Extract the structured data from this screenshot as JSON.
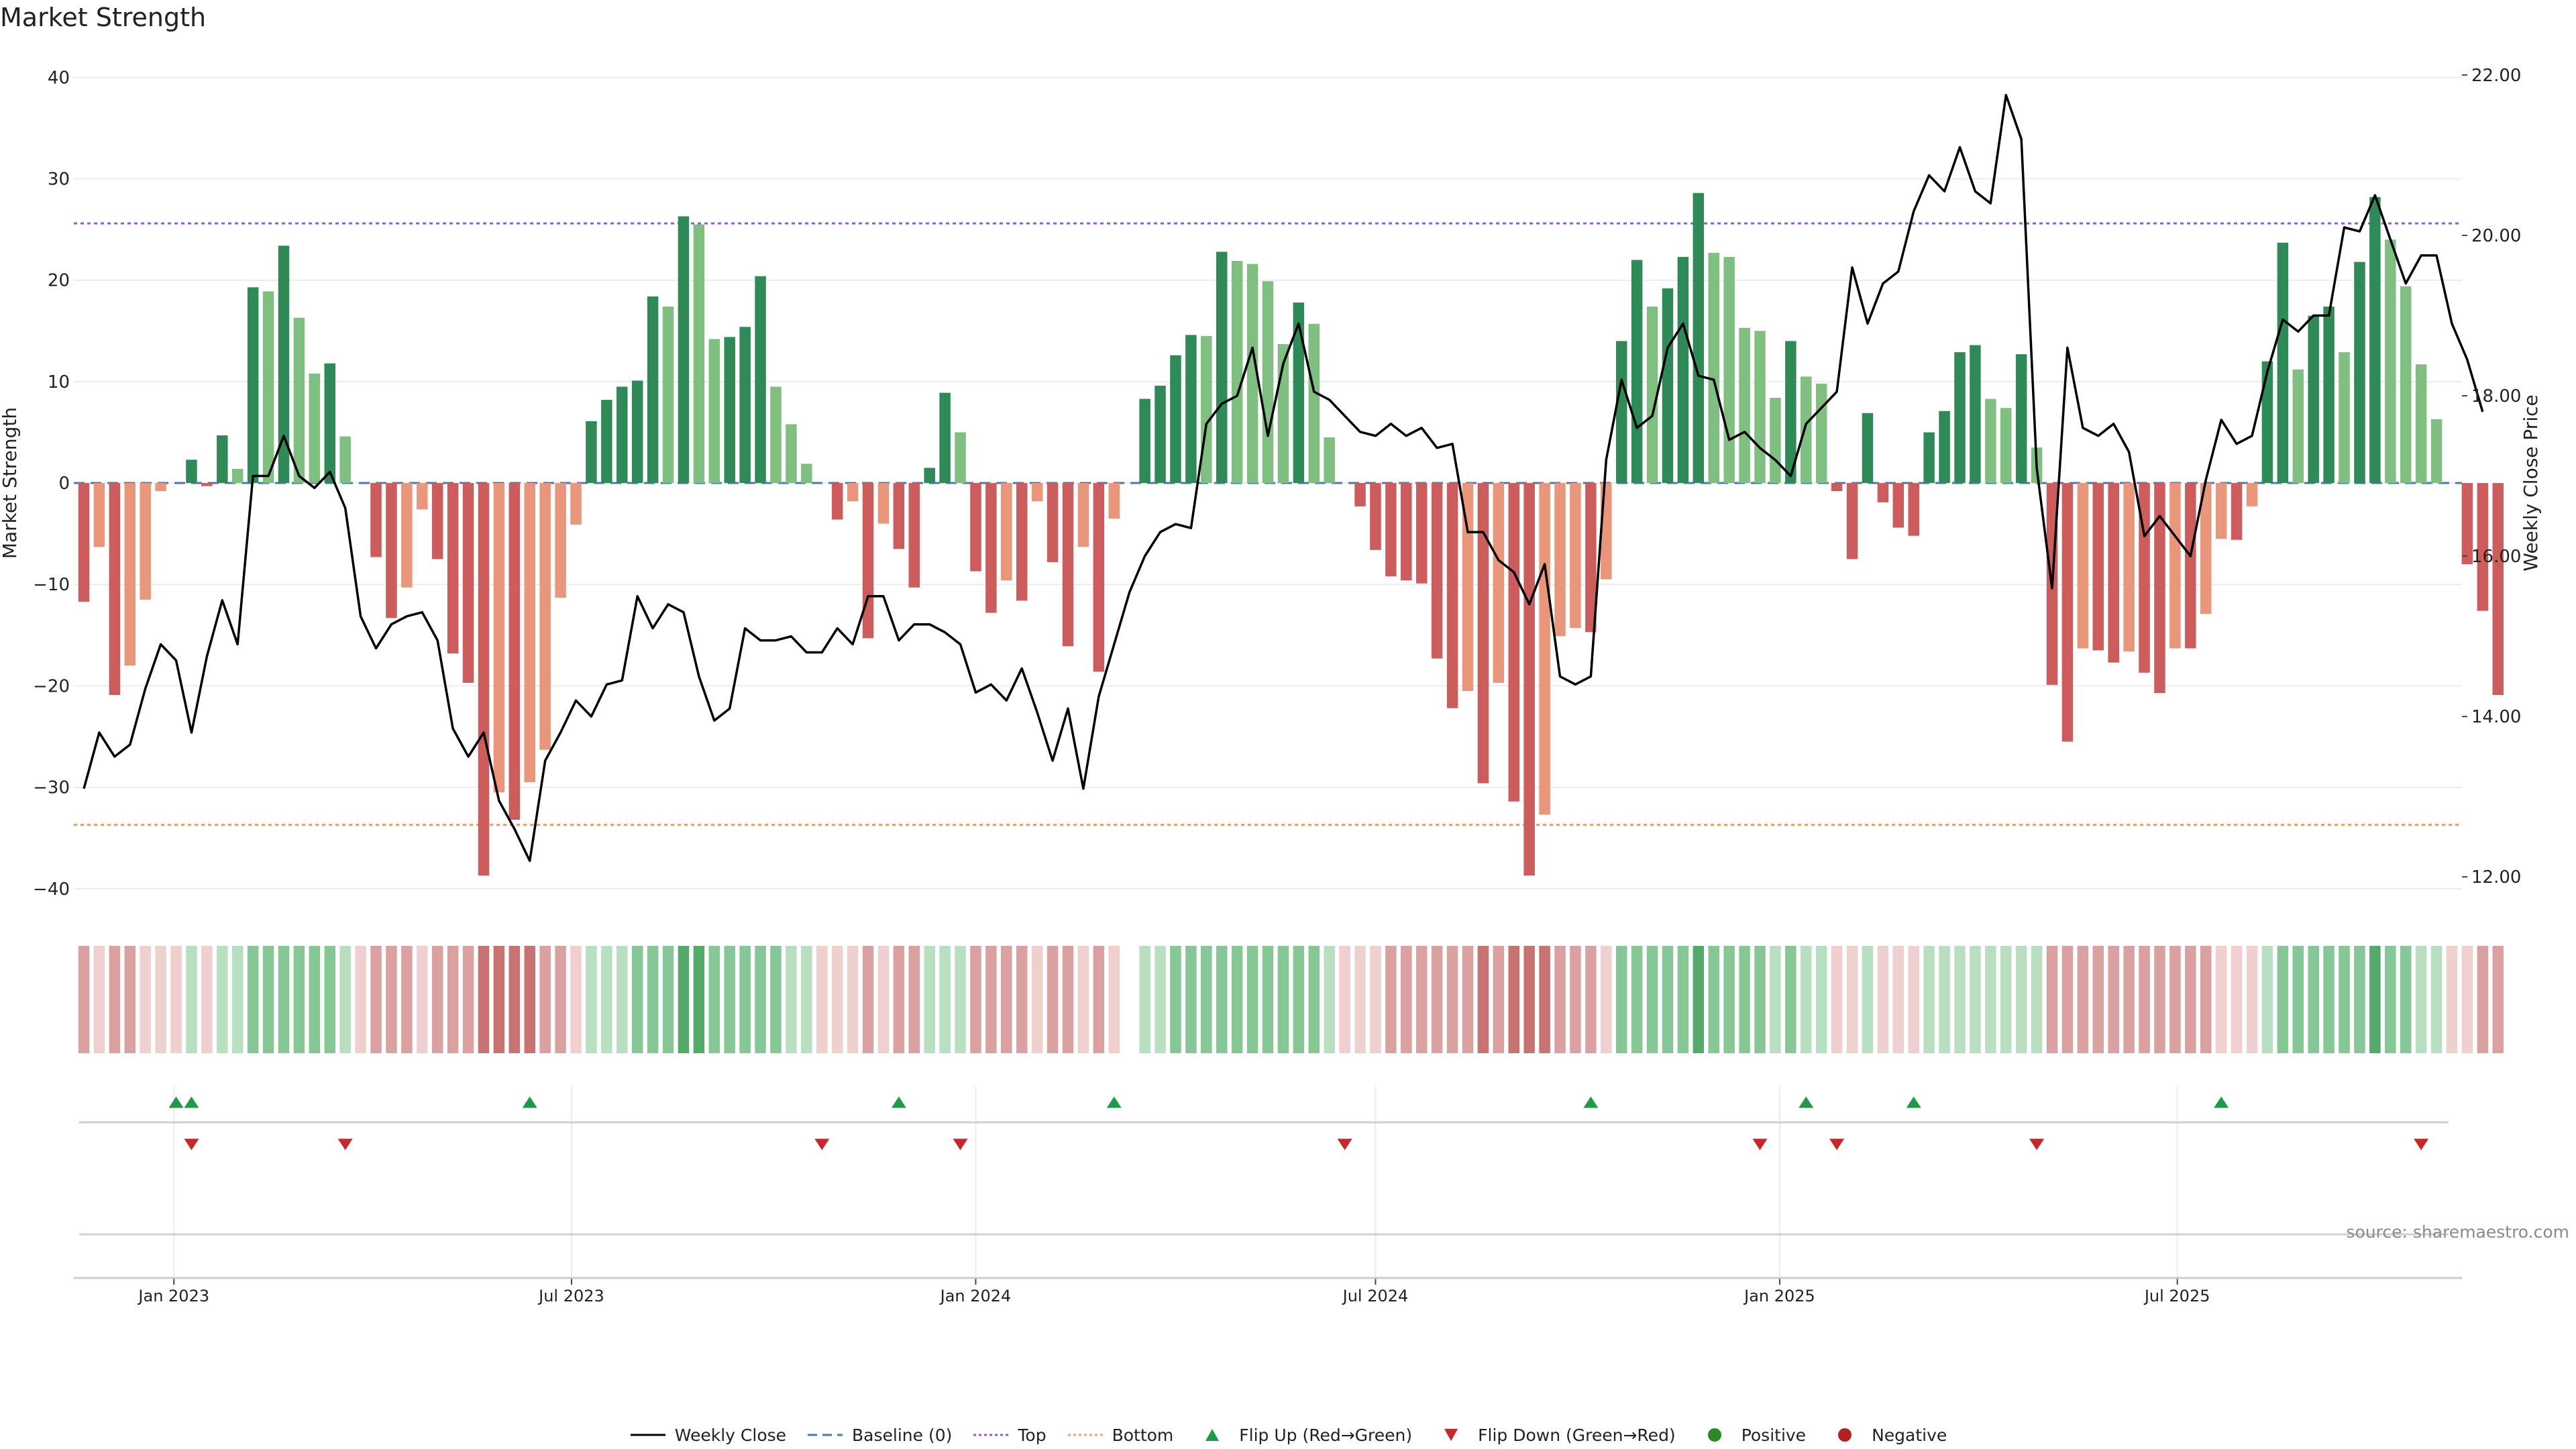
{
  "title": "Market Strength",
  "source": "source: sharemaestro.com",
  "colors": {
    "strong_green": "#2e8b57",
    "light_green": "#7fbf7f",
    "strong_red": "#cd5c5c",
    "light_red": "#e9967a",
    "flip_up": "#1f9a4a",
    "flip_down": "#c62828",
    "positive": "#2a8a2a",
    "negative": "#b22222",
    "baseline": "#4a78b5",
    "top": "#9b59d6",
    "bottom": "#f0a070",
    "price": "#000000"
  },
  "chart_data": {
    "type": "bar",
    "title": "Market Strength",
    "ylabel": "Market Strength",
    "y2label": "Weekly Close Price",
    "ylim": [
      -42,
      43
    ],
    "y2lim": [
      11.6,
      22.35
    ],
    "yticks": [
      40,
      30,
      20,
      10,
      0,
      -10,
      -20,
      -30,
      -40
    ],
    "y2ticks": [
      "22.00",
      "20.00",
      "18.00",
      "16.00",
      "14.00",
      "12.00"
    ],
    "y2tick_values": [
      22,
      20,
      18,
      16,
      14,
      12
    ],
    "x_start": "2022-11-21",
    "x_end": "2025-11-03",
    "x_interval_days": 7,
    "xticks": [
      {
        "label": "Jan 2023",
        "date": "2023-01-01"
      },
      {
        "label": "Jul 2023",
        "date": "2023-07-01"
      },
      {
        "label": "Jan 2024",
        "date": "2024-01-01"
      },
      {
        "label": "Jul 2024",
        "date": "2024-07-01"
      },
      {
        "label": "Jan 2025",
        "date": "2025-01-01"
      },
      {
        "label": "Jul 2025",
        "date": "2025-07-01"
      }
    ],
    "top": 25.6,
    "bottom": -33.7,
    "baseline": 0,
    "strength": [
      -11.7,
      -6.3,
      -20.9,
      -18,
      -11.5,
      -0.8,
      0,
      2.3,
      -0.3,
      4.7,
      1.4,
      19.3,
      18.9,
      23.4,
      16.3,
      10.8,
      11.8,
      4.6,
      0,
      -7.3,
      -13.3,
      -10.3,
      -2.6,
      -7.5,
      -16.8,
      -19.7,
      -38.7,
      -30.5,
      -33.2,
      -29.5,
      -26.3,
      -11.3,
      -4.1,
      6.1,
      8.2,
      9.5,
      10.1,
      18.4,
      17.4,
      26.3,
      25.5,
      14.2,
      14.4,
      15.4,
      20.4,
      9.5,
      5.8,
      1.9,
      0,
      -3.6,
      -1.8,
      -15.3,
      -4,
      -6.5,
      -10.3,
      1.5,
      8.9,
      5,
      -8.7,
      -12.8,
      -9.6,
      -11.6,
      -1.8,
      -7.8,
      -16.1,
      -6.3,
      -18.6,
      -3.5,
      0,
      8.3,
      9.6,
      12.6,
      14.6,
      14.5,
      22.8,
      21.9,
      21.6,
      19.9,
      13.7,
      17.8,
      15.7,
      4.5,
      0,
      -2.3,
      -6.6,
      -9.2,
      -9.6,
      -9.9,
      -17.3,
      -22.2,
      -20.5,
      -29.6,
      -19.7,
      -31.4,
      -38.7,
      -32.7,
      -15.1,
      -14.3,
      -14.7,
      -9.5,
      14,
      22,
      17.4,
      19.2,
      22.3,
      28.6,
      22.7,
      22.3,
      15.3,
      15,
      8.4,
      14,
      10.5,
      9.8,
      -0.8,
      -7.5,
      6.9,
      -1.9,
      -4.4,
      -5.2,
      5,
      7.1,
      12.9,
      13.6,
      8.3,
      7.4,
      12.7,
      3.5,
      -19.9,
      -25.5,
      -16.3,
      -16.5,
      -17.7,
      -16.6,
      -18.7,
      -20.7,
      -16.3,
      -16.3,
      -12.9,
      -5.5,
      -5.6,
      -2.3,
      12,
      23.7,
      11.2,
      16.5,
      17.4,
      12.9,
      21.8,
      28.2,
      24,
      19.4,
      11.7,
      6.3,
      0,
      -8,
      -12.6,
      -20.9
    ],
    "price": [
      13.1,
      13.8,
      13.5,
      13.65,
      14.35,
      14.9,
      14.7,
      13.8,
      14.75,
      15.45,
      14.9,
      17,
      17,
      17.5,
      17,
      16.85,
      17.05,
      16.6,
      15.25,
      14.85,
      15.15,
      15.25,
      15.3,
      14.95,
      13.85,
      13.5,
      13.8,
      12.95,
      12.6,
      12.2,
      13.45,
      13.8,
      14.2,
      14,
      14.4,
      14.45,
      15.5,
      15.1,
      15.4,
      15.3,
      14.5,
      13.95,
      14.1,
      15.1,
      14.95,
      14.95,
      15,
      14.8,
      14.8,
      15.1,
      14.9,
      15.5,
      15.5,
      14.95,
      15.15,
      15.15,
      15.05,
      14.9,
      14.3,
      14.4,
      14.2,
      14.6,
      14.05,
      13.45,
      14.1,
      13.1,
      14.25,
      14.9,
      15.55,
      16,
      16.3,
      16.4,
      16.35,
      17.65,
      17.9,
      18,
      18.6,
      17.5,
      18.4,
      18.9,
      18.05,
      17.95,
      17.75,
      17.55,
      17.5,
      17.65,
      17.5,
      17.6,
      17.35,
      17.4,
      16.3,
      16.3,
      15.95,
      15.8,
      15.4,
      15.9,
      14.5,
      14.4,
      14.5,
      17.2,
      18.2,
      17.6,
      17.75,
      18.6,
      18.9,
      18.25,
      18.2,
      17.45,
      17.55,
      17.35,
      17.2,
      17,
      17.65,
      17.85,
      18.05,
      19.6,
      18.9,
      19.4,
      19.55,
      20.3,
      20.75,
      20.55,
      21.1,
      20.55,
      20.4,
      21.75,
      21.2,
      17.1,
      15.6,
      18.6,
      17.6,
      17.5,
      17.65,
      17.3,
      16.25,
      16.5,
      16.25,
      16,
      16.95,
      17.7,
      17.4,
      17.5,
      18.3,
      18.95,
      18.8,
      19,
      19,
      20.1,
      20.05,
      20.5,
      19.95,
      19.4,
      19.75,
      19.75,
      18.9,
      18.45,
      17.8
    ],
    "band_levels": [
      -2,
      -1,
      -2,
      -2,
      -1,
      -1,
      -1,
      1,
      -1,
      1,
      1,
      2,
      2,
      2,
      2,
      2,
      2,
      1,
      -1,
      -2,
      -2,
      -2,
      -1,
      -2,
      -2,
      -2,
      -3,
      -3,
      -3,
      -3,
      -2,
      -2,
      -1,
      1,
      1,
      1,
      2,
      2,
      2,
      3,
      3,
      2,
      2,
      2,
      2,
      2,
      1,
      1,
      -1,
      -1,
      -1,
      -2,
      -1,
      -2,
      -2,
      1,
      1,
      1,
      -2,
      -2,
      -2,
      -2,
      -1,
      -2,
      -2,
      -1,
      -2,
      -1,
      0,
      1,
      1,
      2,
      2,
      2,
      2,
      2,
      2,
      2,
      2,
      2,
      2,
      1,
      -1,
      -1,
      -1,
      -2,
      -2,
      -2,
      -2,
      -2,
      -2,
      -3,
      -2,
      -3,
      -3,
      -3,
      -2,
      -2,
      -2,
      -1,
      2,
      2,
      2,
      2,
      2,
      3,
      2,
      2,
      2,
      2,
      1,
      2,
      1,
      1,
      -1,
      -1,
      1,
      -1,
      -1,
      -1,
      1,
      1,
      1,
      1,
      1,
      1,
      1,
      1,
      -2,
      -2,
      -2,
      -2,
      -2,
      -2,
      -2,
      -2,
      -2,
      -2,
      -2,
      -1,
      -1,
      -1,
      1,
      2,
      2,
      2,
      2,
      2,
      2,
      3,
      2,
      2,
      1,
      1,
      -1,
      -1,
      -2,
      -2
    ],
    "flip_up_dates": [
      "2023-01-02",
      "2023-01-09",
      "2023-06-12",
      "2023-11-27",
      "2024-03-04",
      "2024-10-07",
      "2025-01-13",
      "2025-03-03",
      "2025-07-21"
    ],
    "flip_down_dates": [
      "2023-01-09",
      "2023-03-20",
      "2023-10-23",
      "2023-12-25",
      "2024-06-17",
      "2024-12-23",
      "2025-01-27",
      "2025-04-28",
      "2025-10-20"
    ],
    "legend": [
      "Weekly Close",
      "Baseline (0)",
      "Top",
      "Bottom",
      "Flip Up (Red→Green)",
      "Flip Down (Green→Red)",
      "Positive",
      "Negative"
    ]
  }
}
